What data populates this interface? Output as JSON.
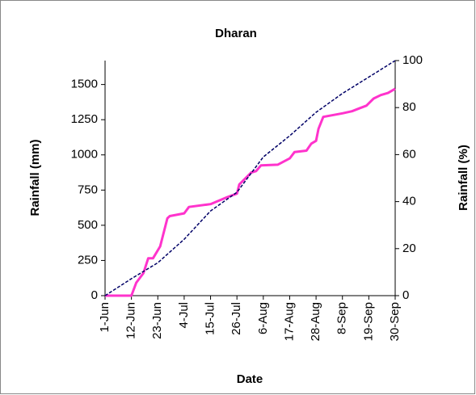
{
  "chart_data": {
    "type": "line",
    "title": "Dharan",
    "xlabel": "Date",
    "ylabel": "Rainfall (mm)",
    "y2label": "Rainfall (%)",
    "xlim": [
      "1-Jun",
      "30-Sep"
    ],
    "xticks": [
      "1-Jun",
      "12-Jun",
      "23-Jun",
      "4-Jul",
      "15-Jul",
      "26-Jul",
      "6-Aug",
      "17-Aug",
      "28-Aug",
      "8-Sep",
      "19-Sep",
      "30-Sep"
    ],
    "ylim": [
      0,
      1670
    ],
    "yticks": [
      0,
      250,
      500,
      750,
      1000,
      1250,
      1500
    ],
    "y2lim": [
      0,
      100
    ],
    "y2ticks": [
      0,
      20,
      40,
      60,
      80,
      100
    ],
    "series": [
      {
        "name": "Rainfall (mm)",
        "color": "#ff33cc",
        "dashed": false,
        "x": [
          "1-Jun",
          "12-Jun",
          "14-Jun",
          "17-Jun",
          "19-Jun",
          "21-Jun",
          "24-Jun",
          "27-Jun",
          "28-Jun",
          "4-Jul",
          "6-Jul",
          "15-Jul",
          "22-Jul",
          "26-Jul",
          "27-Jul",
          "1-Aug",
          "3-Aug",
          "5-Aug",
          "12-Aug",
          "17-Aug",
          "19-Aug",
          "24-Aug",
          "26-Aug",
          "28-Aug",
          "29-Aug",
          "31-Aug",
          "8-Sep",
          "12-Sep",
          "15-Sep",
          "18-Sep",
          "21-Sep",
          "24-Sep",
          "27-Sep",
          "30-Sep"
        ],
        "values": [
          0,
          0,
          92,
          160,
          265,
          265,
          350,
          550,
          565,
          585,
          630,
          650,
          700,
          725,
          790,
          875,
          885,
          925,
          930,
          975,
          1020,
          1030,
          1080,
          1100,
          1185,
          1270,
          1295,
          1310,
          1330,
          1350,
          1400,
          1425,
          1440,
          1470
        ]
      },
      {
        "name": "Rainfall (%)",
        "color": "#000066",
        "dashed": true,
        "axis": "y2",
        "x": [
          "1-Jun",
          "12-Jun",
          "23-Jun",
          "4-Jul",
          "15-Jul",
          "26-Jul",
          "6-Aug",
          "17-Aug",
          "28-Aug",
          "8-Sep",
          "19-Sep",
          "30-Sep"
        ],
        "values": [
          0,
          7.2,
          14,
          24,
          36,
          44,
          59,
          68,
          78,
          86,
          93,
          100
        ]
      }
    ]
  }
}
